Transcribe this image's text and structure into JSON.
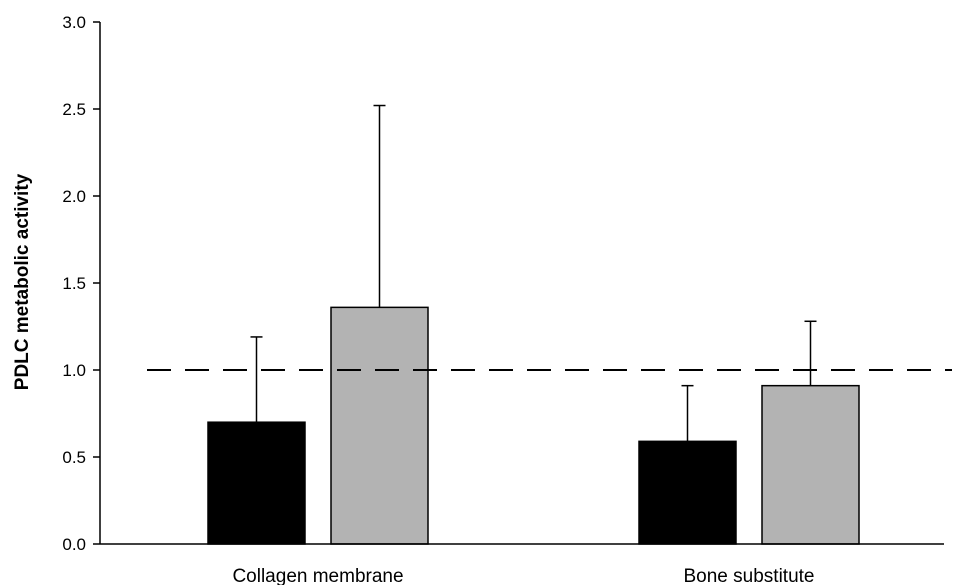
{
  "chart_data": {
    "type": "bar",
    "title": "",
    "xlabel": "",
    "ylabel": "PDLC metabolic activity",
    "ylim": [
      0,
      3.0
    ],
    "yticks": [
      "0.0",
      "0.5",
      "1.0",
      "1.5",
      "2.0",
      "2.5",
      "3.0"
    ],
    "categories": [
      "Collagen membrane",
      "Bone substitute"
    ],
    "series": [
      {
        "color": "#000000",
        "values": [
          0.7,
          0.59
        ],
        "error": [
          0.49,
          0.32
        ]
      },
      {
        "color": "#b3b3b3",
        "values": [
          1.36,
          0.91
        ],
        "error": [
          1.16,
          0.37
        ]
      }
    ],
    "reference_line": {
      "value": 1.0,
      "style": "dashed"
    },
    "grid": false,
    "legend": "none"
  }
}
